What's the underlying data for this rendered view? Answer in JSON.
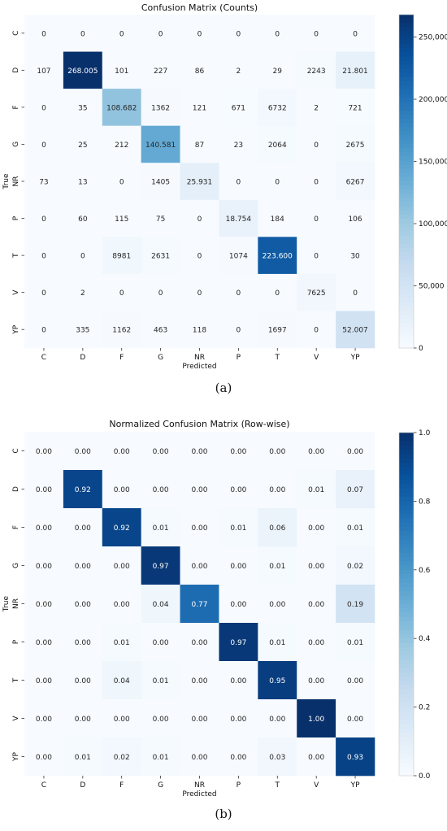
{
  "chart_data": [
    {
      "type": "heatmap",
      "title": "Confusion Matrix (Counts)",
      "xlabel": "Predicted",
      "ylabel": "True",
      "x_categories": [
        "C",
        "D",
        "F",
        "G",
        "NR",
        "P",
        "T",
        "V",
        "YP"
      ],
      "y_categories": [
        "C",
        "D",
        "F",
        "G",
        "NR",
        "P",
        "T",
        "V",
        "YP"
      ],
      "values": [
        [
          0,
          0,
          0,
          0,
          0,
          0,
          0,
          0,
          0
        ],
        [
          107,
          268005,
          101,
          227,
          86,
          2,
          29,
          2243,
          21801
        ],
        [
          0,
          35,
          108682,
          1362,
          121,
          671,
          6732,
          2,
          721
        ],
        [
          0,
          25,
          212,
          140581,
          87,
          23,
          2064,
          0,
          2675
        ],
        [
          73,
          13,
          0,
          1405,
          25931,
          0,
          0,
          0,
          6267
        ],
        [
          0,
          60,
          115,
          75,
          0,
          18754,
          184,
          0,
          106
        ],
        [
          0,
          0,
          8981,
          2631,
          0,
          1074,
          223600,
          0,
          30
        ],
        [
          0,
          2,
          0,
          0,
          0,
          0,
          0,
          7625,
          0
        ],
        [
          0,
          335,
          1162,
          463,
          118,
          0,
          1697,
          0,
          52007
        ]
      ],
      "cell_labels": [
        [
          "0",
          "0",
          "0",
          "0",
          "0",
          "0",
          "0",
          "0",
          "0"
        ],
        [
          "107",
          "268.005",
          "101",
          "227",
          "86",
          "2",
          "29",
          "2243",
          "21.801"
        ],
        [
          "0",
          "35",
          "108.682",
          "1362",
          "121",
          "671",
          "6732",
          "2",
          "721"
        ],
        [
          "0",
          "25",
          "212",
          "140.581",
          "87",
          "23",
          "2064",
          "0",
          "2675"
        ],
        [
          "73",
          "13",
          "0",
          "1405",
          "25.931",
          "0",
          "0",
          "0",
          "6267"
        ],
        [
          "0",
          "60",
          "115",
          "75",
          "0",
          "18.754",
          "184",
          "0",
          "106"
        ],
        [
          "0",
          "0",
          "8981",
          "2631",
          "0",
          "1074",
          "223.600",
          "0",
          "30"
        ],
        [
          "0",
          "2",
          "0",
          "0",
          "0",
          "0",
          "0",
          "7625",
          "0"
        ],
        [
          "0",
          "335",
          "1162",
          "463",
          "118",
          "0",
          "1697",
          "0",
          "52.007"
        ]
      ],
      "colorbar": {
        "range": [
          0,
          268005
        ],
        "ticks": [
          0,
          50000,
          100000,
          150000,
          200000,
          250000
        ],
        "tick_labels": [
          "0",
          "50,000",
          "100,000",
          "150,000",
          "200,000",
          "250,000"
        ]
      },
      "colormap": "Blues",
      "caption": "(a)"
    },
    {
      "type": "heatmap",
      "title": "Normalized Confusion Matrix (Row-wise)",
      "xlabel": "Predicted",
      "ylabel": "True",
      "x_categories": [
        "C",
        "D",
        "F",
        "G",
        "NR",
        "P",
        "T",
        "V",
        "YP"
      ],
      "y_categories": [
        "C",
        "D",
        "F",
        "G",
        "NR",
        "P",
        "T",
        "V",
        "YP"
      ],
      "values": [
        [
          0.0,
          0.0,
          0.0,
          0.0,
          0.0,
          0.0,
          0.0,
          0.0,
          0.0
        ],
        [
          0.0,
          0.92,
          0.0,
          0.0,
          0.0,
          0.0,
          0.0,
          0.01,
          0.07
        ],
        [
          0.0,
          0.0,
          0.92,
          0.01,
          0.0,
          0.01,
          0.06,
          0.0,
          0.01
        ],
        [
          0.0,
          0.0,
          0.0,
          0.97,
          0.0,
          0.0,
          0.01,
          0.0,
          0.02
        ],
        [
          0.0,
          0.0,
          0.0,
          0.04,
          0.77,
          0.0,
          0.0,
          0.0,
          0.19
        ],
        [
          0.0,
          0.0,
          0.01,
          0.0,
          0.0,
          0.97,
          0.01,
          0.0,
          0.01
        ],
        [
          0.0,
          0.0,
          0.04,
          0.01,
          0.0,
          0.0,
          0.95,
          0.0,
          0.0
        ],
        [
          0.0,
          0.0,
          0.0,
          0.0,
          0.0,
          0.0,
          0.0,
          1.0,
          0.0
        ],
        [
          0.0,
          0.01,
          0.02,
          0.01,
          0.0,
          0.0,
          0.03,
          0.0,
          0.93
        ]
      ],
      "cell_labels": [
        [
          "0.00",
          "0.00",
          "0.00",
          "0.00",
          "0.00",
          "0.00",
          "0.00",
          "0.00",
          "0.00"
        ],
        [
          "0.00",
          "0.92",
          "0.00",
          "0.00",
          "0.00",
          "0.00",
          "0.00",
          "0.01",
          "0.07"
        ],
        [
          "0.00",
          "0.00",
          "0.92",
          "0.01",
          "0.00",
          "0.01",
          "0.06",
          "0.00",
          "0.01"
        ],
        [
          "0.00",
          "0.00",
          "0.00",
          "0.97",
          "0.00",
          "0.00",
          "0.01",
          "0.00",
          "0.02"
        ],
        [
          "0.00",
          "0.00",
          "0.00",
          "0.04",
          "0.77",
          "0.00",
          "0.00",
          "0.00",
          "0.19"
        ],
        [
          "0.00",
          "0.00",
          "0.01",
          "0.00",
          "0.00",
          "0.97",
          "0.01",
          "0.00",
          "0.01"
        ],
        [
          "0.00",
          "0.00",
          "0.04",
          "0.01",
          "0.00",
          "0.00",
          "0.95",
          "0.00",
          "0.00"
        ],
        [
          "0.00",
          "0.00",
          "0.00",
          "0.00",
          "0.00",
          "0.00",
          "0.00",
          "1.00",
          "0.00"
        ],
        [
          "0.00",
          "0.01",
          "0.02",
          "0.01",
          "0.00",
          "0.00",
          "0.03",
          "0.00",
          "0.93"
        ]
      ],
      "colorbar": {
        "range": [
          0,
          1
        ],
        "ticks": [
          0,
          0.2,
          0.4,
          0.6,
          0.8,
          1.0
        ],
        "tick_labels": [
          "0.0",
          "0.2",
          "0.4",
          "0.6",
          "0.8",
          "1.0"
        ]
      },
      "colormap": "Blues",
      "caption": "(b)"
    }
  ]
}
